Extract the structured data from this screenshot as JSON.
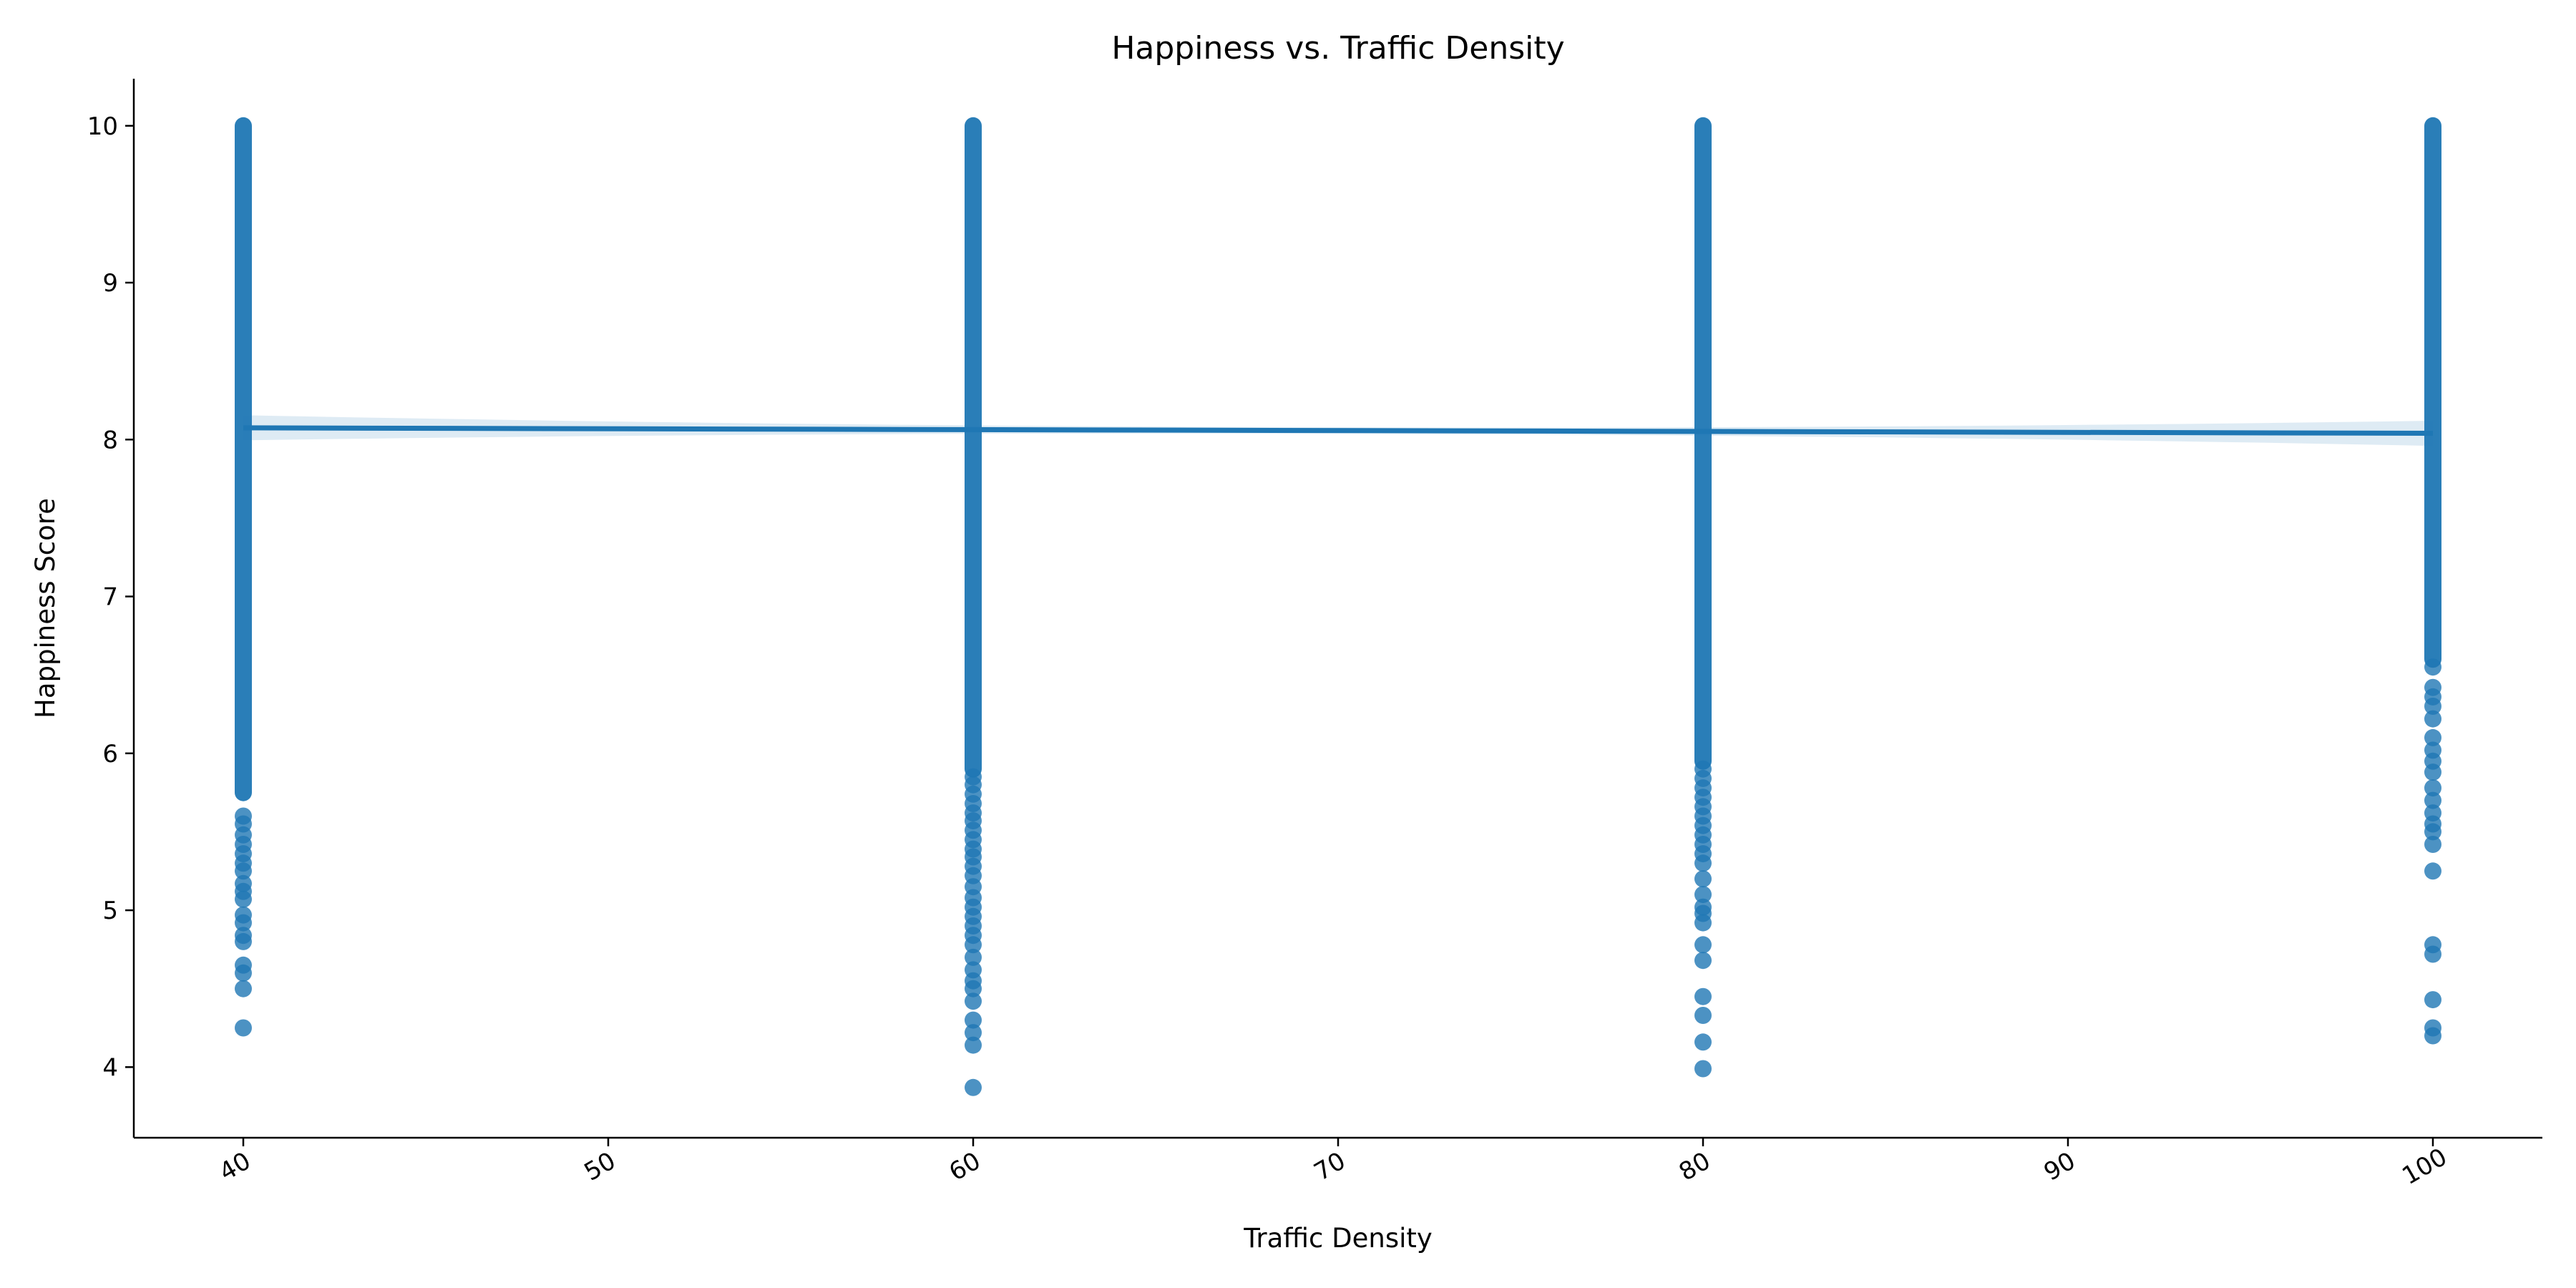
{
  "chart_data": {
    "type": "scatter",
    "title": "Happiness vs. Traffic Density",
    "xlabel": "Traffic Density",
    "ylabel": "Happiness Score",
    "xlim": [
      37,
      103
    ],
    "ylim": [
      3.55,
      10.3
    ],
    "xticks": [
      40,
      50,
      60,
      70,
      80,
      90,
      100
    ],
    "yticks": [
      4,
      5,
      6,
      7,
      8,
      9,
      10
    ],
    "grid": false,
    "colors": {
      "points": "#1f77b4",
      "regression_line": "#1f77b4",
      "confidence_band": "#1f77b4"
    },
    "series": [
      {
        "x": 40,
        "y_range": [
          5.75,
          10.0
        ],
        "outliers": [
          5.6,
          5.55,
          5.48,
          5.42,
          5.36,
          5.3,
          5.25,
          5.17,
          5.12,
          5.07,
          4.97,
          4.92,
          4.84,
          4.8,
          4.65,
          4.6,
          4.5,
          4.25
        ]
      },
      {
        "x": 60,
        "y_range": [
          5.9,
          10.0
        ],
        "outliers": [
          5.85,
          5.8,
          5.74,
          5.68,
          5.62,
          5.57,
          5.51,
          5.45,
          5.39,
          5.34,
          5.28,
          5.22,
          5.15,
          5.08,
          5.02,
          4.96,
          4.9,
          4.84,
          4.78,
          4.7,
          4.62,
          4.55,
          4.5,
          4.42,
          4.3,
          4.22,
          4.14,
          3.87
        ]
      },
      {
        "x": 80,
        "y_range": [
          5.95,
          10.0
        ],
        "outliers": [
          5.9,
          5.84,
          5.78,
          5.72,
          5.66,
          5.6,
          5.54,
          5.48,
          5.42,
          5.36,
          5.3,
          5.2,
          5.1,
          5.02,
          4.98,
          4.92,
          4.78,
          4.68,
          4.45,
          4.33,
          4.16,
          3.99
        ]
      },
      {
        "x": 100,
        "y_range": [
          6.6,
          10.0
        ],
        "outliers": [
          6.55,
          6.42,
          6.36,
          6.3,
          6.22,
          6.1,
          6.02,
          5.95,
          5.88,
          5.78,
          5.7,
          5.62,
          5.55,
          5.5,
          5.42,
          5.25,
          4.78,
          4.72,
          4.43,
          4.25,
          4.2
        ]
      }
    ],
    "regression_line": {
      "x": [
        40,
        100
      ],
      "y": [
        8.075,
        8.04
      ],
      "ci_halfwidth_at_ends": 0.08,
      "ci_halfwidth_at_mid": 0.02
    }
  }
}
